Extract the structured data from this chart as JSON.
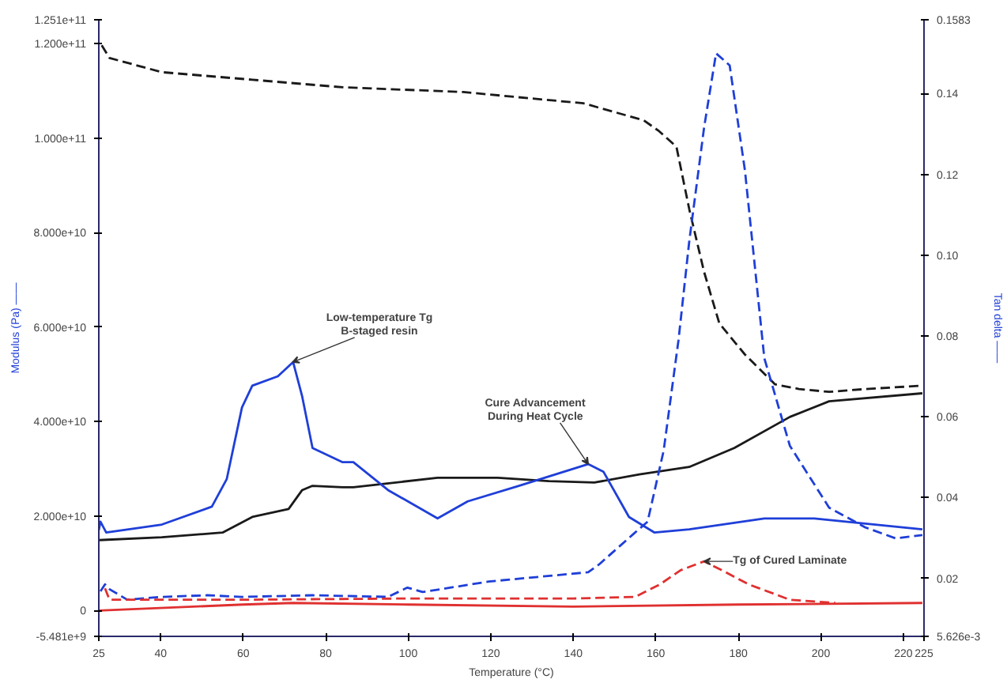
{
  "chart_data": {
    "type": "line",
    "xlabel": "Temperature (°C)",
    "ylabel": "Modulus (Pa) ——",
    "y2label": "Tan delta ——",
    "xlim": [
      25,
      225
    ],
    "xticks": [
      25,
      40,
      60,
      80,
      100,
      120,
      140,
      160,
      180,
      200,
      220,
      225
    ],
    "ylim": [
      -5481000000,
      125100000000
    ],
    "yticks": [
      {
        "value": -5481000000,
        "label": "-5.481e+9"
      },
      {
        "value": 0,
        "label": "0"
      },
      {
        "value": 20000000000,
        "label": "2.000e+10"
      },
      {
        "value": 40000000000,
        "label": "4.000e+10"
      },
      {
        "value": 60000000000,
        "label": "6.000e+10"
      },
      {
        "value": 80000000000,
        "label": "8.000e+10"
      },
      {
        "value": 100000000000,
        "label": "1.000e+11"
      },
      {
        "value": 120000000000,
        "label": "1.200e+11"
      },
      {
        "value": 125100000000,
        "label": "1.251e+11"
      }
    ],
    "y2lim": [
      0.005626,
      0.1583
    ],
    "y2ticks": [
      {
        "value": 0.005626,
        "label": "5.626e-3"
      },
      0.02,
      0.04,
      0.06,
      0.08,
      {
        "value": 0.1,
        "label": "0.10"
      },
      0.12,
      0.14,
      {
        "value": 0.1583,
        "label": "0.1583"
      }
    ],
    "series": [
      {
        "color": "#1a1a1a",
        "line_style": "dashed",
        "x": [
          25.7,
          27.6,
          40.3,
          62.2,
          84.1,
          113.3,
          142.5,
          157.1,
          160.8,
          165,
          168.1,
          171.7,
          175.4,
          181.6,
          188.9,
          194.7,
          202,
          210.8,
          224.6
        ],
        "values": [
          119700000000,
          117000000000,
          114000000000,
          112400000000,
          110800000000,
          109800000000,
          107400000000,
          103800000000,
          101500000000,
          98200000000,
          85000000000,
          71700000000,
          60800000000,
          54200000000,
          47900000000,
          46900000000,
          46300000000,
          46900000000,
          47600000000
        ]
      },
      {
        "color": "#1a1a1a",
        "line_style": "solid",
        "x": [
          25,
          40.3,
          55,
          62.2,
          71,
          74.3,
          76.8,
          84.1,
          86.7,
          107.1,
          121.7,
          134.1,
          145.1,
          156,
          168.1,
          179,
          192.5,
          202,
          224.6
        ],
        "values": [
          14900000000,
          15500000000,
          16500000000,
          19800000000,
          21500000000,
          25500000000,
          26400000000,
          26100000000,
          26100000000,
          28100000000,
          28100000000,
          27400000000,
          27100000000,
          28800000000,
          30400000000,
          34400000000,
          41000000000,
          44300000000,
          46000000000
        ]
      },
      {
        "color": "#1f3fd8",
        "line_style": "solid",
        "x": [
          25,
          25.4,
          26.8,
          40.3,
          52.4,
          56,
          59.7,
          62.2,
          68.4,
          72.1,
          74.3,
          76.8,
          84.1,
          86.7,
          95.1,
          107.1,
          114.4,
          126.8,
          143.6,
          147.3,
          153.5,
          159.7,
          168.1,
          186.3,
          198.4,
          224.6
        ],
        "values": [
          17000000000,
          18800000000,
          16500000000,
          18200000000,
          22000000000,
          27800000000,
          43000000000,
          47600000000,
          49600000000,
          52600000000,
          45300000000,
          34400000000,
          31400000000,
          31400000000,
          25500000000,
          19500000000,
          23100000000,
          26400000000,
          31000000000,
          29400000000,
          19800000000,
          16500000000,
          17200000000,
          19500000000,
          19500000000,
          17200000000
        ]
      },
      {
        "color": "#1f3fd8",
        "line_style": "dashed",
        "axis": "y2",
        "x": [
          25.4,
          26.5,
          27.6,
          31.9,
          40.3,
          51.3,
          59.7,
          76.8,
          95.1,
          99.8,
          103.5,
          119.5,
          143.6,
          146.2,
          154.6,
          158,
          161.9,
          165.5,
          168.1,
          171.7,
          174.6,
          177.9,
          181.6,
          186.3,
          192.5,
          202,
          210.8,
          218.1,
          224.6
        ],
        "values": [
          0.0168,
          0.0185,
          0.0173,
          0.0147,
          0.0154,
          0.0158,
          0.0154,
          0.0158,
          0.0154,
          0.0177,
          0.0166,
          0.0192,
          0.0215,
          0.0234,
          0.031,
          0.034,
          0.0516,
          0.079,
          0.1034,
          0.1316,
          0.15,
          0.147,
          0.121,
          0.0745,
          0.0528,
          0.0375,
          0.0326,
          0.0299,
          0.0307
        ]
      },
      {
        "color": "#e03030",
        "line_style": "dashed",
        "axis": "y2",
        "x": [
          26.5,
          27.6,
          60,
          100,
          140,
          155,
          161,
          166,
          171.7,
          176,
          182.5,
          192.5,
          203.5
        ],
        "values": [
          0.0175,
          0.0147,
          0.0147,
          0.015,
          0.015,
          0.0154,
          0.0185,
          0.022,
          0.0242,
          0.022,
          0.0185,
          0.0147,
          0.0139
        ]
      },
      {
        "color": "#e03030",
        "line_style": "solid",
        "axis": "y2",
        "x": [
          25,
          60,
          72,
          100,
          140,
          180,
          224.6
        ],
        "values": [
          0.012,
          0.0135,
          0.0139,
          0.0135,
          0.013,
          0.0135,
          0.0139
        ]
      }
    ],
    "annotations": [
      {
        "text": "Low-temperature Tg\nB-staged resin",
        "x": 72,
        "y": 52600000000
      },
      {
        "text": "Cure Advancement\nDuring Heat Cycle",
        "x": 143.6,
        "y": 31000000000
      },
      {
        "text": "Tg of Cured Laminate",
        "x": 171.7,
        "y": 10400000000
      }
    ]
  }
}
